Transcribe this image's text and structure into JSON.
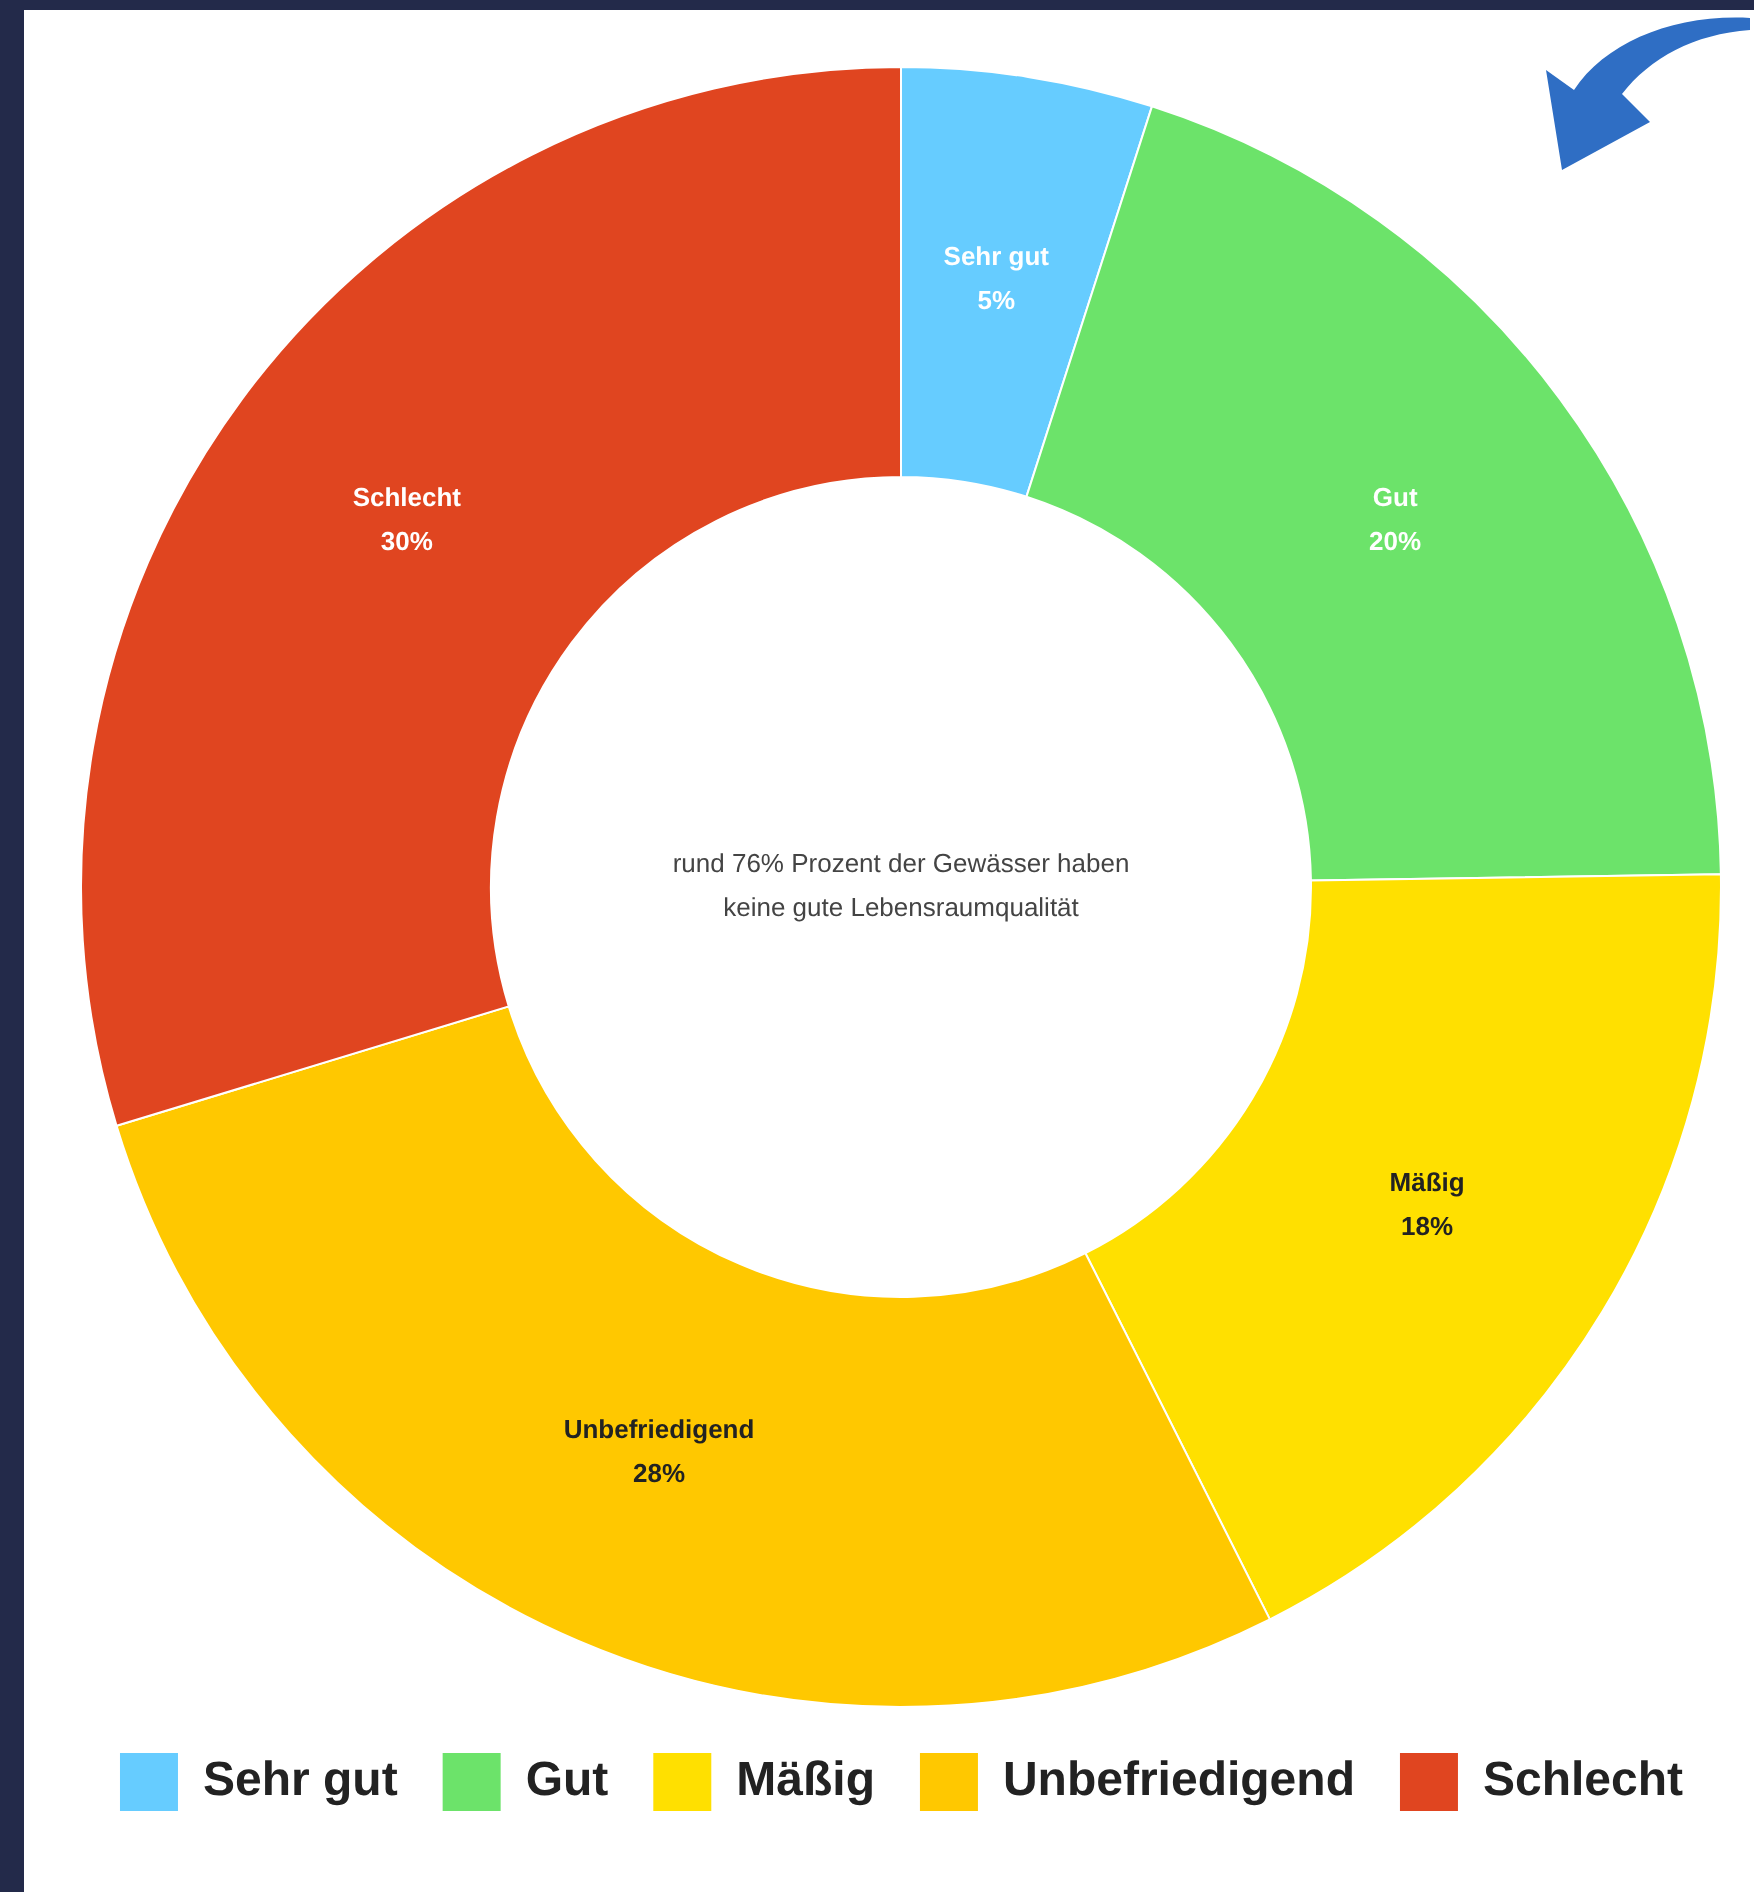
{
  "chart_data": {
    "type": "donut",
    "categories": [
      "Sehr gut",
      "Gut",
      "Mäßig",
      "Unbefriedigend",
      "Schlecht"
    ],
    "values": [
      5,
      20,
      18,
      28,
      30
    ],
    "colors": [
      "#66ccff",
      "#6ce36a",
      "#ffe000",
      "#ffc800",
      "#e04520"
    ],
    "value_labels": [
      "5%",
      "20%",
      "18%",
      "28%",
      "30%"
    ],
    "annotations": [
      "rund 76% Prozent der Gewässer haben keine gute Lebensraumqualität"
    ],
    "legend": "bottom"
  }
}
